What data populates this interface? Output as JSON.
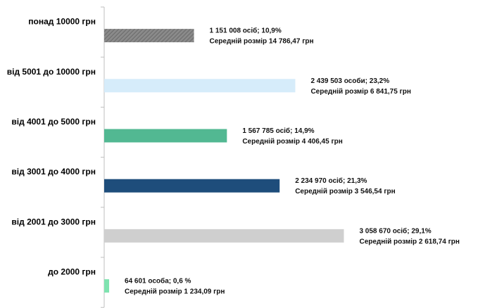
{
  "chart_data": {
    "type": "bar",
    "orientation": "horizontal",
    "title": "",
    "xlabel": "",
    "ylabel": "",
    "grid": false,
    "xlim": [
      0,
      30
    ],
    "categories": [
      "понад 10000 грн",
      "від 5001 до 10000 грн",
      "від 4001 до 5000 грн",
      "від 3001 до 4000 грн",
      "від 2001 до 3000 грн",
      "до 2000 грн"
    ],
    "values": [
      10.9,
      23.2,
      14.9,
      21.3,
      29.1,
      0.6
    ],
    "colors": [
      "#7f7f7f",
      "#d6ecfa",
      "#52b892",
      "#1e4d7b",
      "#cfcfcf",
      "#7fe3b0"
    ],
    "patterns": [
      "hatched",
      "solid",
      "solid",
      "solid",
      "solid",
      "solid"
    ],
    "labels_line1": [
      "1 151 008 осіб;  10,9%",
      "2 439 503 особи; 23,2%",
      "1 567 785 осіб; 14,9%",
      "2 234 970 осіб; 21,3%",
      "3 058 670 осіб; 29,1%",
      "64 601 особа; 0,6 %"
    ],
    "labels_line2": [
      "Середній розмір 14 786,47 грн",
      "Середній розмір 6 841,75 грн",
      "Середній розмір 4 406,45 грн",
      "Середній розмір 3 546,54 грн",
      "Середній розмір 2 618,74 грн",
      "Середній розмір 1 234,09 грн"
    ]
  }
}
